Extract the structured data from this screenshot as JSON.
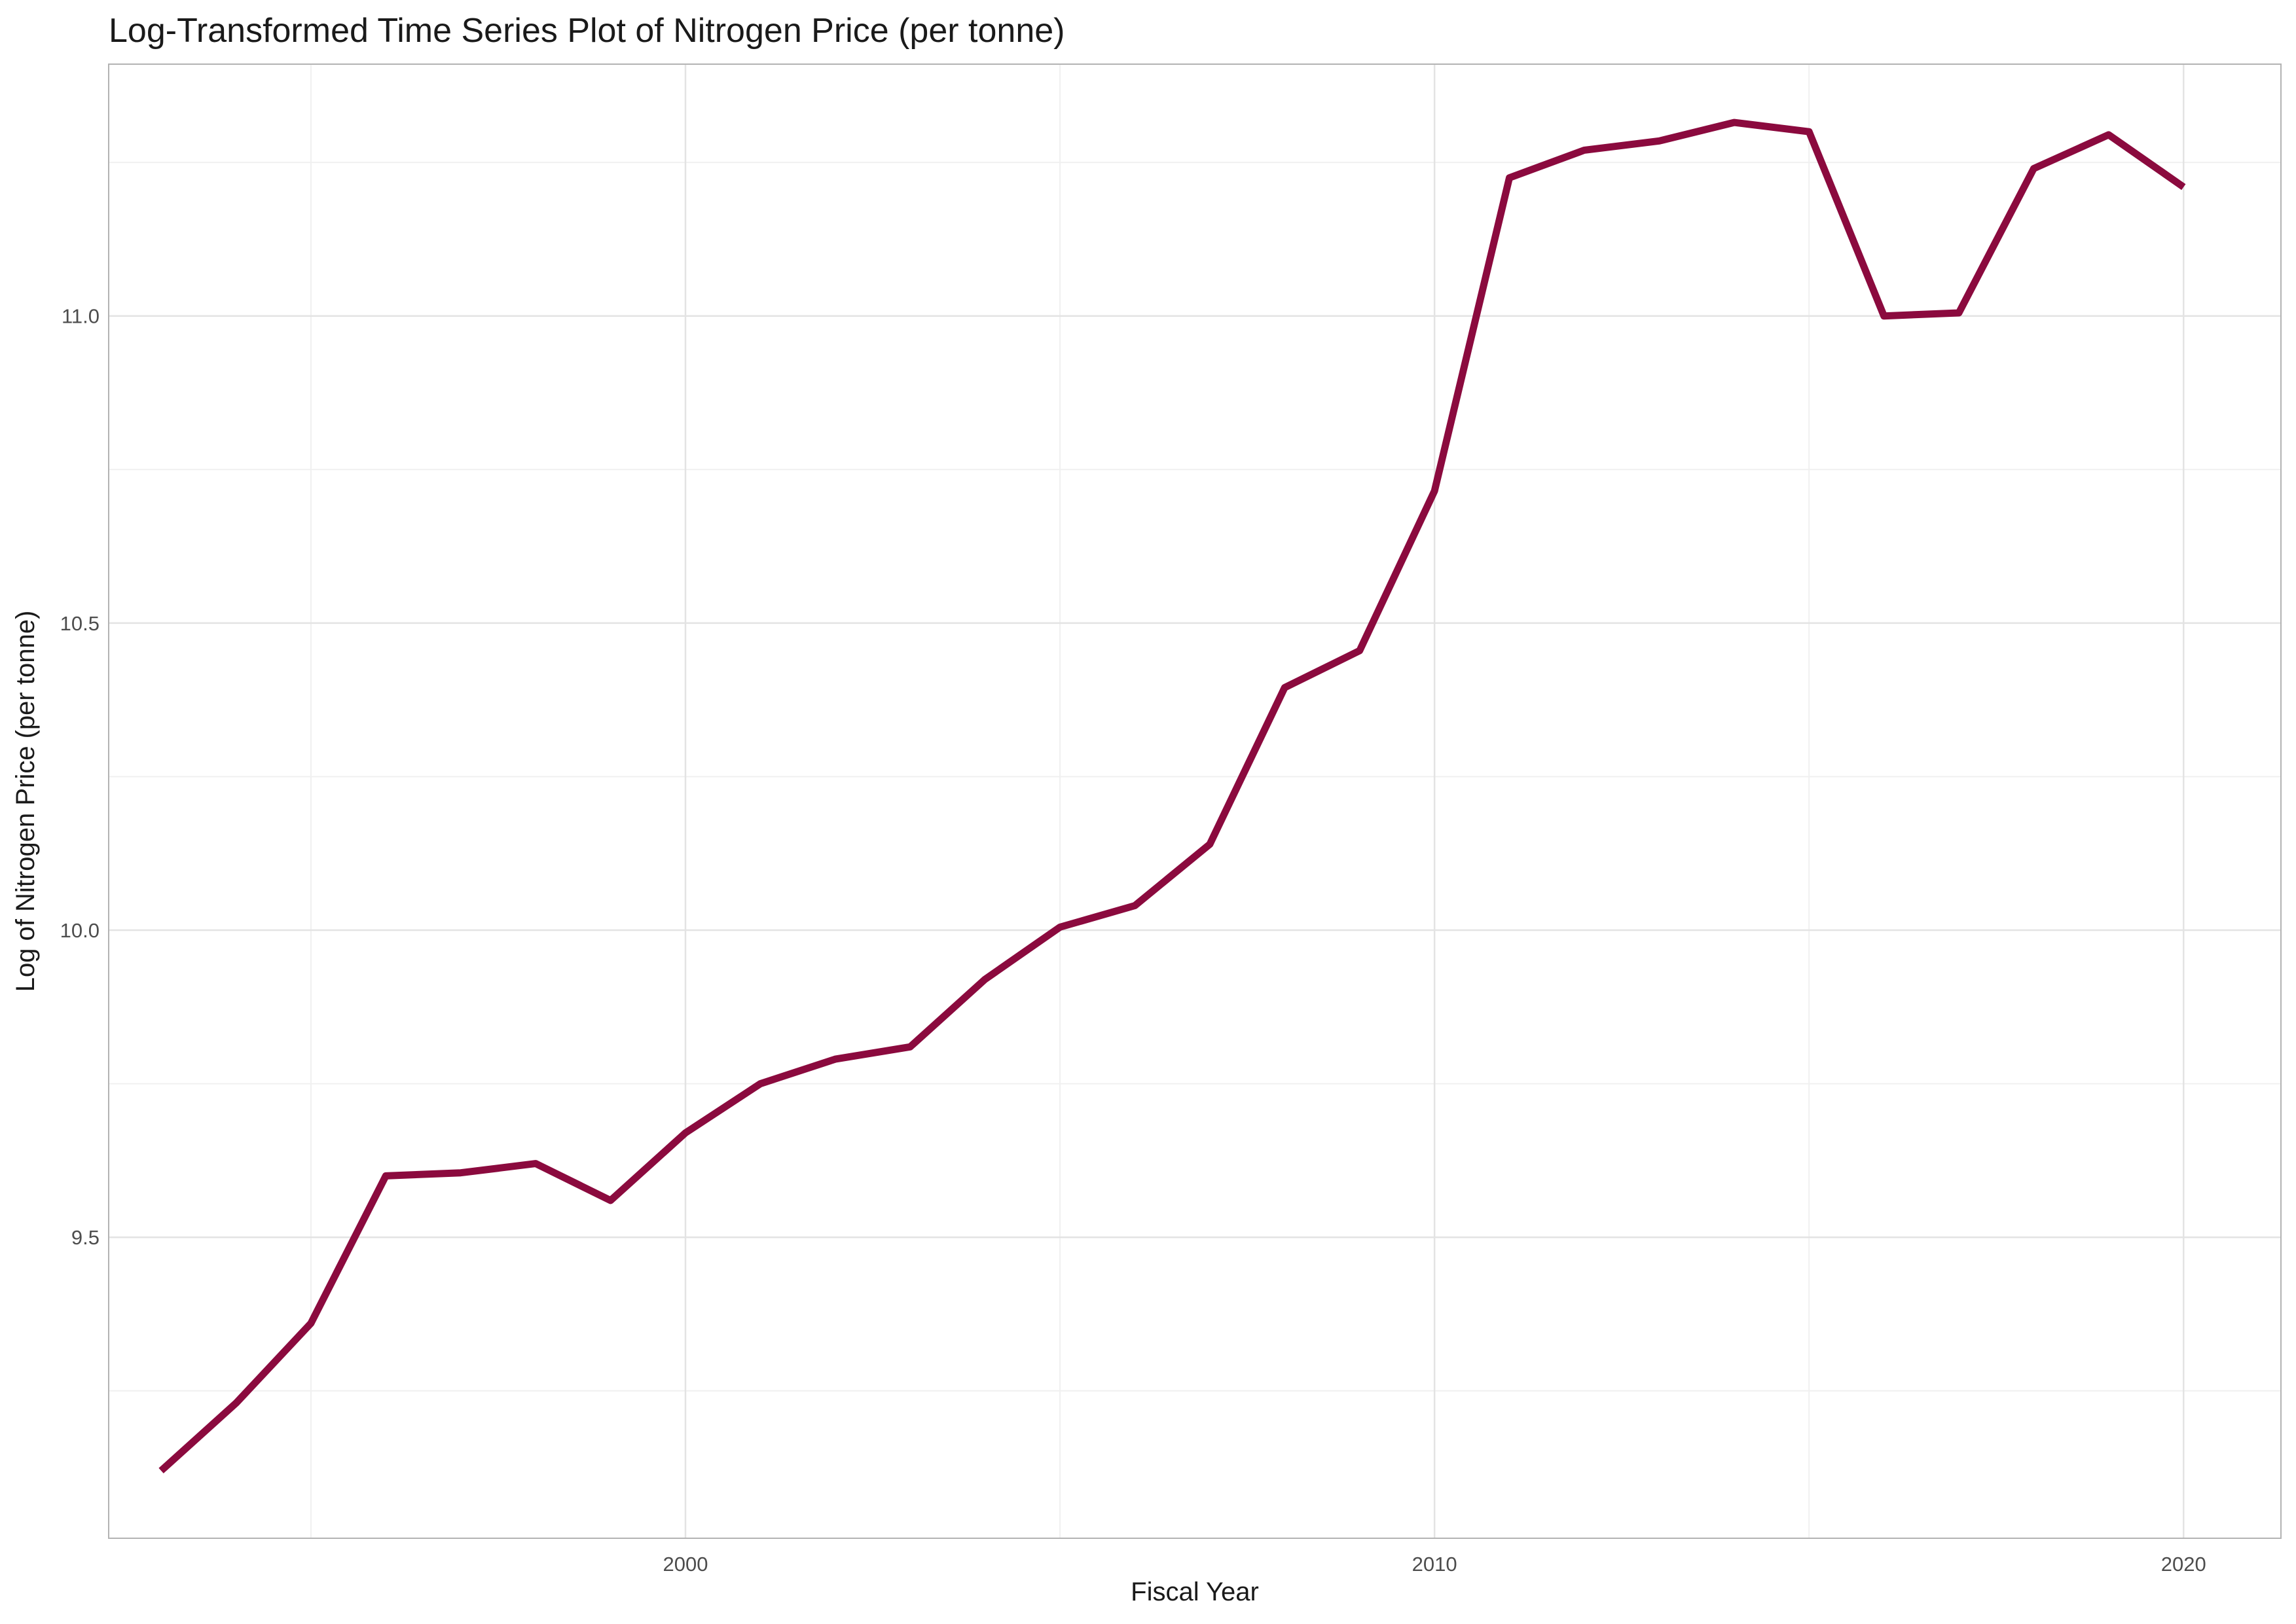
{
  "chart_data": {
    "type": "line",
    "title": "Log-Transformed Time Series Plot of Nitrogen Price (per tonne)",
    "xlabel": "Fiscal Year",
    "ylabel": "Log of Nitrogen Price (per tonne)",
    "xlim": [
      1992.3,
      2021.3
    ],
    "ylim": [
      9.01,
      11.41
    ],
    "x_ticks": [
      2000,
      2010,
      2020
    ],
    "y_ticks": [
      9.5,
      10.0,
      10.5,
      11.0
    ],
    "x_tick_labels": [
      "2000",
      "2010",
      "2020"
    ],
    "y_tick_labels": [
      "9.5",
      "10.0",
      "10.5",
      "11.0"
    ],
    "grid": true,
    "series": [
      {
        "color": "#8B0A3E",
        "x": [
          1993,
          1994,
          1995,
          1996,
          1997,
          1998,
          1999,
          2000,
          2001,
          2002,
          2003,
          2004,
          2005,
          2006,
          2007,
          2008,
          2009,
          2010,
          2011,
          2012,
          2013,
          2014,
          2015,
          2016,
          2017,
          2018,
          2019,
          2020
        ],
        "y": [
          9.12,
          9.23,
          9.36,
          9.6,
          9.605,
          9.62,
          9.56,
          9.67,
          9.75,
          9.79,
          9.81,
          9.92,
          10.005,
          10.04,
          10.14,
          10.395,
          10.455,
          10.715,
          11.225,
          11.27,
          11.285,
          11.315,
          11.3,
          11.0,
          11.005,
          11.24,
          11.295,
          11.21
        ]
      }
    ]
  }
}
